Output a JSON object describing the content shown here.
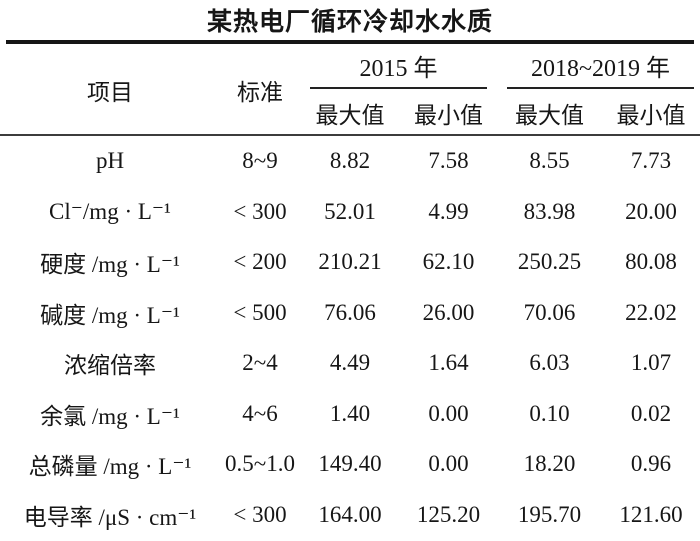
{
  "table": {
    "title": "某热电厂循环冷却水水质",
    "header": {
      "item": "项目",
      "standard": "标准",
      "group_2015": "2015 年",
      "group_2018_2019": "2018~2019 年",
      "max": "最大值",
      "min": "最小值"
    },
    "rows": [
      {
        "item": "pH",
        "standard": "8~9",
        "y2015_max": "8.82",
        "y2015_min": "7.58",
        "y2018_max": "8.55",
        "y2018_min": "7.73"
      },
      {
        "item": "Cl⁻/mg · L⁻¹",
        "standard": "< 300",
        "y2015_max": "52.01",
        "y2015_min": "4.99",
        "y2018_max": "83.98",
        "y2018_min": "20.00"
      },
      {
        "item": "硬度 /mg · L⁻¹",
        "standard": "< 200",
        "y2015_max": "210.21",
        "y2015_min": "62.10",
        "y2018_max": "250.25",
        "y2018_min": "80.08"
      },
      {
        "item": "碱度 /mg · L⁻¹",
        "standard": "< 500",
        "y2015_max": "76.06",
        "y2015_min": "26.00",
        "y2018_max": "70.06",
        "y2018_min": "22.02"
      },
      {
        "item": "浓缩倍率",
        "standard": "2~4",
        "y2015_max": "4.49",
        "y2015_min": "1.64",
        "y2018_max": "6.03",
        "y2018_min": "1.07"
      },
      {
        "item": "余氯 /mg · L⁻¹",
        "standard": "4~6",
        "y2015_max": "1.40",
        "y2015_min": "0.00",
        "y2018_max": "0.10",
        "y2018_min": "0.02"
      },
      {
        "item": "总磷量 /mg · L⁻¹",
        "standard": "0.5~1.0",
        "y2015_max": "149.40",
        "y2015_min": "0.00",
        "y2018_max": "18.20",
        "y2018_min": "0.96"
      },
      {
        "item": "电导率 /μS · cm⁻¹",
        "standard": "< 300",
        "y2015_max": "164.00",
        "y2015_min": "125.20",
        "y2018_max": "195.70",
        "y2018_min": "121.60"
      }
    ]
  }
}
